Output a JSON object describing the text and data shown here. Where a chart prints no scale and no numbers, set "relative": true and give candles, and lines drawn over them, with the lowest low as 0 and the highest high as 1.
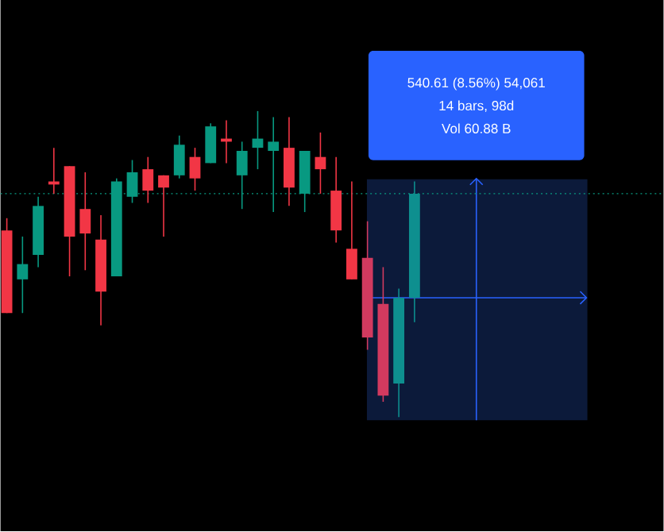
{
  "chart_data": {
    "type": "candlestick",
    "relative": true,
    "categories": [
      null,
      null,
      null,
      null,
      null,
      null,
      null,
      null,
      null,
      null,
      null,
      null,
      null,
      null,
      null,
      null,
      null,
      null,
      null,
      null,
      null,
      null,
      null,
      null,
      null,
      null,
      null
    ],
    "ohlc": [
      [
        0.61,
        0.65,
        0.34,
        0.34
      ],
      [
        0.45,
        0.59,
        0.34,
        0.5
      ],
      [
        0.53,
        0.72,
        0.49,
        0.69
      ],
      [
        0.77,
        0.88,
        0.73,
        0.76
      ],
      [
        0.82,
        0.82,
        0.46,
        0.59
      ],
      [
        0.68,
        0.8,
        0.48,
        0.6
      ],
      [
        0.58,
        0.66,
        0.3,
        0.41
      ],
      [
        0.46,
        0.78,
        0.46,
        0.77
      ],
      [
        0.72,
        0.84,
        0.7,
        0.8
      ],
      [
        0.81,
        0.85,
        0.7,
        0.74
      ],
      [
        0.79,
        0.79,
        0.59,
        0.75
      ],
      [
        0.79,
        0.92,
        0.78,
        0.89
      ],
      [
        0.85,
        0.88,
        0.74,
        0.78
      ],
      [
        0.83,
        0.96,
        0.83,
        0.95
      ],
      [
        0.91,
        0.97,
        0.83,
        0.9
      ],
      [
        0.79,
        0.9,
        0.68,
        0.87
      ],
      [
        0.88,
        1,
        0.81,
        0.91
      ],
      [
        0.87,
        0.98,
        0.67,
        0.9
      ],
      [
        0.88,
        0.98,
        0.69,
        0.75
      ],
      [
        0.73,
        0.87,
        0.67,
        0.87
      ],
      [
        0.85,
        0.93,
        0.73,
        0.81
      ],
      [
        0.74,
        0.85,
        0.57,
        0.61
      ],
      [
        0.55,
        0.77,
        0.45,
        0.45
      ],
      [
        0.52,
        0.64,
        0.22,
        0.26
      ],
      [
        0.37,
        0.49,
        0.05,
        0.07
      ],
      [
        0.11,
        0.42,
        0,
        0.39
      ],
      [
        0.39,
        0.77,
        0.31,
        0.73
      ]
    ],
    "colors": [
      "#f23645",
      "#089981",
      "#089981",
      "#f23645",
      "#f23645",
      "#f23645",
      "#f23645",
      "#089981",
      "#089981",
      "#f23645",
      "#f23645",
      "#089981",
      "#f23645",
      "#089981",
      "#f23645",
      "#089981",
      "#089981",
      "#089981",
      "#f23645",
      "#089981",
      "#f23645",
      "#f23645",
      "#f23645",
      "#d23a5f",
      "#d23a5f",
      "#0e8f8f",
      "#0e8f8f"
    ],
    "ref_lines": [
      {
        "axis": "y",
        "value": 0.73,
        "color": "#089981",
        "line_style": "dotted"
      },
      {
        "axis": "y",
        "value": 0.39,
        "color": "#2962ff",
        "line_style": "solid"
      }
    ],
    "annotations": [
      "540.61 (8.56%) 54,061",
      "14 bars, 98d",
      "Vol 60.88 B"
    ]
  }
}
